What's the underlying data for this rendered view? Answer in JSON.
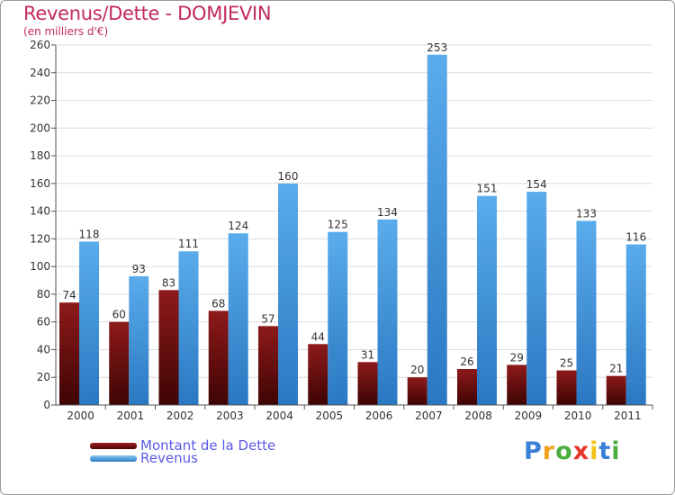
{
  "chart_data": {
    "type": "bar",
    "title": "Revenus/Dette - DOMJEVIN",
    "subtitle": "(en milliers d'€)",
    "categories": [
      "2000",
      "2001",
      "2002",
      "2003",
      "2004",
      "2005",
      "2006",
      "2007",
      "2008",
      "2009",
      "2010",
      "2011"
    ],
    "series": [
      {
        "name": "Montant de la Dette",
        "color": "#7a1010",
        "values": [
          74,
          60,
          83,
          68,
          57,
          44,
          31,
          20,
          26,
          29,
          25,
          21
        ]
      },
      {
        "name": "Revenus",
        "color": "#4a9fe0",
        "values": [
          118,
          93,
          111,
          124,
          160,
          125,
          134,
          253,
          151,
          154,
          133,
          116
        ]
      }
    ],
    "ylim": [
      0,
      260
    ],
    "yticks": [
      0,
      20,
      40,
      60,
      80,
      100,
      120,
      140,
      160,
      180,
      200,
      220,
      240,
      260
    ],
    "grid": true,
    "legend_position": "bottom-left"
  },
  "logo": {
    "letters": [
      "P",
      "r",
      "o",
      "x",
      "i",
      "t",
      "i"
    ],
    "colors": [
      "#3a7fd8",
      "#f2a21c",
      "#4cae3e",
      "#e8382c",
      "#f2c21c",
      "#3a7fd8",
      "#4cae3e"
    ]
  }
}
